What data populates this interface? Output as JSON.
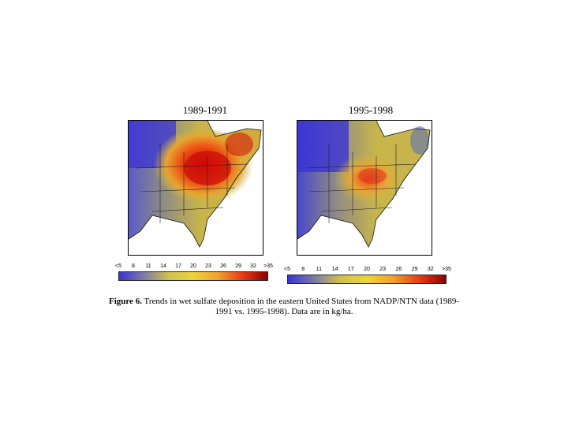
{
  "maps": [
    {
      "title": "1989-1991"
    },
    {
      "title": "1995-1998"
    }
  ],
  "legend_ticks": [
    "<5",
    "8",
    "11",
    "14",
    "17",
    "20",
    "23",
    "26",
    "29",
    "32",
    ">35"
  ],
  "caption": {
    "label": "Figure 6.",
    "text": " Trends in wet sulfate deposition in the eastern United States from NADP/NTN data (1989-1991 vs. 1995-1998).  Data are in kg/ha."
  },
  "colors": {
    "low": "#3a33d6",
    "mid": "#e6d23a",
    "high": "#e41c10",
    "max": "#8a0000"
  }
}
